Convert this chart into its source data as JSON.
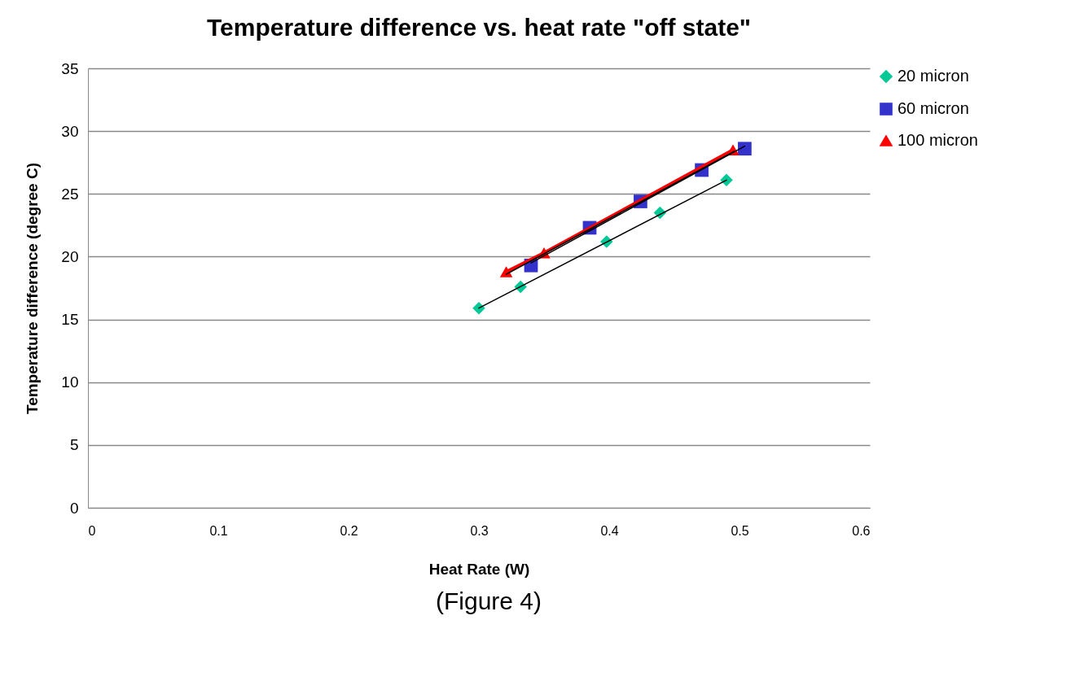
{
  "chart_data": {
    "type": "scatter",
    "title": "Temperature difference vs. heat rate \"off state\"",
    "xlabel": "Heat Rate (W)",
    "ylabel": "Temperature difference (degree C)",
    "annotations": [
      "(Figure 4)"
    ],
    "xlim": [
      0,
      0.6
    ],
    "xticks": [
      0,
      0.1,
      0.2,
      0.3,
      0.4,
      0.5,
      0.6
    ],
    "ylim": [
      0,
      35
    ],
    "yticks": [
      0,
      5,
      10,
      15,
      20,
      25,
      30,
      35
    ],
    "grid": "y",
    "legend": "right",
    "series": [
      {
        "name": "20 micron",
        "marker": "diamond",
        "color": "#00c896",
        "x": [
          0.3,
          0.332,
          0.398,
          0.439,
          0.49
        ],
        "values": [
          15.9,
          17.6,
          21.2,
          23.5,
          26.1
        ]
      },
      {
        "name": "60 micron",
        "marker": "square",
        "color": "#3333cc",
        "x": [
          0.34,
          0.385,
          0.424,
          0.471,
          0.504
        ],
        "values": [
          19.3,
          22.3,
          24.4,
          26.9,
          28.6
        ]
      },
      {
        "name": "100 micron",
        "type": "line",
        "marker": "triangle",
        "color": "#ff0000",
        "x": [
          0.321,
          0.35,
          0.495
        ],
        "values": [
          18.8,
          20.3,
          28.5
        ]
      },
      {
        "type": "line",
        "marker": "none",
        "color": "#000000",
        "x": [
          0.3,
          0.49
        ],
        "values": [
          15.9,
          26.1
        ]
      },
      {
        "type": "line",
        "marker": "none",
        "color": "#000000",
        "x": [
          0.34,
          0.504
        ],
        "values": [
          19.5,
          28.8
        ]
      },
      {
        "type": "line",
        "marker": "none",
        "color": "#000000",
        "x": [
          0.321,
          0.496
        ],
        "values": [
          18.6,
          28.4
        ]
      }
    ]
  }
}
